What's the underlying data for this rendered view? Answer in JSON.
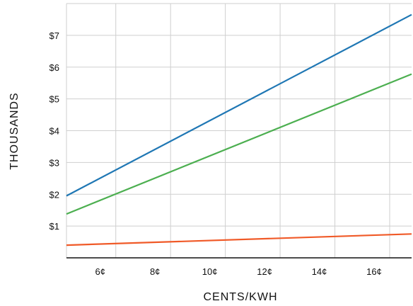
{
  "chart_data": {
    "type": "line",
    "title": "",
    "xlabel": "CENTS/KWH",
    "ylabel": "THOUSANDS",
    "xlim": [
      4.2,
      16.8
    ],
    "ylim": [
      0,
      8
    ],
    "x_ticks": [
      {
        "value": 6,
        "label": "6¢"
      },
      {
        "value": 8,
        "label": "8¢"
      },
      {
        "value": 10,
        "label": "10¢"
      },
      {
        "value": 12,
        "label": "12¢"
      },
      {
        "value": 14,
        "label": "14¢"
      },
      {
        "value": 16,
        "label": "16¢"
      }
    ],
    "y_ticks": [
      {
        "value": 1,
        "label": "$1"
      },
      {
        "value": 2,
        "label": "$2"
      },
      {
        "value": 3,
        "label": "$3"
      },
      {
        "value": 4,
        "label": "$4"
      },
      {
        "value": 5,
        "label": "$5"
      },
      {
        "value": 6,
        "label": "$6"
      },
      {
        "value": 7,
        "label": "$7"
      }
    ],
    "x_gridlines": [
      4.2,
      6,
      8,
      10,
      12,
      14,
      16
    ],
    "y_gridlines": [
      1,
      2,
      3,
      4,
      5,
      6,
      7,
      8
    ],
    "grid": true,
    "legend": "none",
    "series": [
      {
        "color": "#1f77b4",
        "x": [
          4.2,
          16.8
        ],
        "y": [
          1.95,
          7.65
        ]
      },
      {
        "color": "#4caf50",
        "x": [
          4.2,
          16.8
        ],
        "y": [
          1.38,
          5.78
        ]
      },
      {
        "color": "#f05a28",
        "x": [
          4.2,
          16.8
        ],
        "y": [
          0.4,
          0.75
        ]
      }
    ]
  }
}
